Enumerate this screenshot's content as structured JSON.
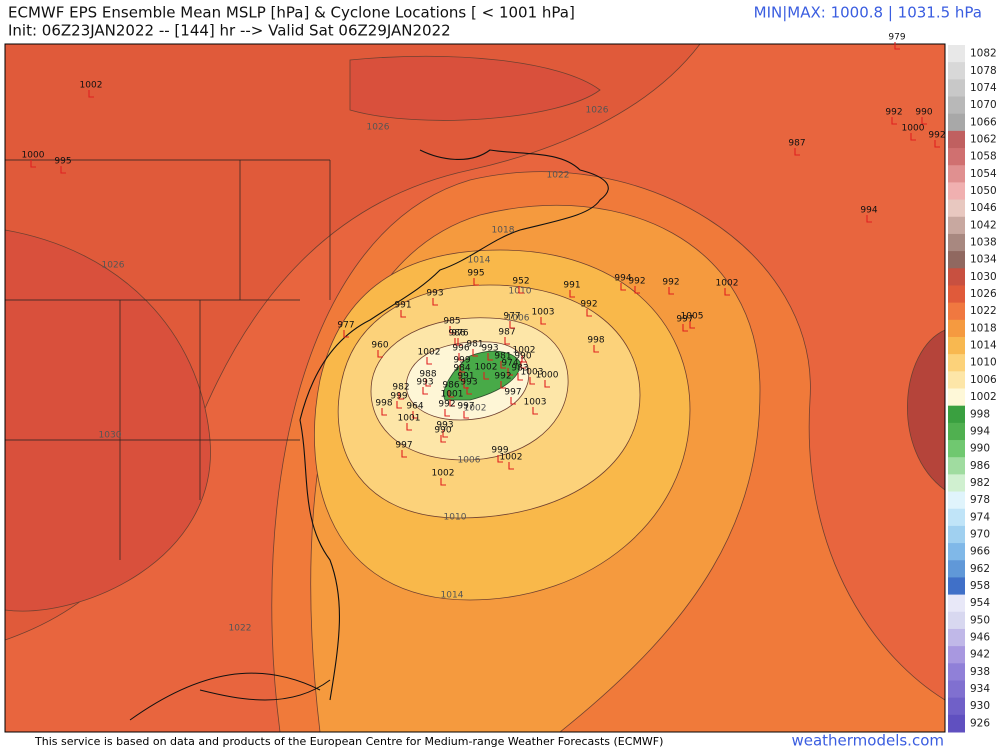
{
  "header": {
    "title": "ECMWF EPS Ensemble Mean MSLP [hPa] & Cyclone Locations [ < 1001 hPa]",
    "init": "Init: 06Z23JAN2022 -- [144] hr --> Valid Sat 06Z29JAN2022",
    "minmax": "MIN|MAX: 1000.8 | 1031.5 hPa"
  },
  "colorbar": {
    "labels": [
      1082,
      1078,
      1074,
      1070,
      1066,
      1062,
      1058,
      1054,
      1050,
      1046,
      1042,
      1038,
      1034,
      1030,
      1026,
      1022,
      1018,
      1014,
      1010,
      1006,
      1002,
      998,
      994,
      990,
      986,
      982,
      978,
      974,
      970,
      966,
      962,
      958,
      954,
      950,
      946,
      942,
      938,
      934,
      930,
      926
    ]
  },
  "contours": {
    "labels": [
      "1026",
      "1026",
      "1022",
      "1018",
      "1014",
      "1010",
      "1006",
      "1002",
      "1006",
      "1010",
      "1014",
      "1026",
      "1030",
      "1022"
    ]
  },
  "cyclones": {
    "labels": [
      "979",
      "1002",
      "1000",
      "995",
      "992",
      "990",
      "1000",
      "992",
      "987",
      "994",
      "995",
      "952",
      "991",
      "994",
      "992",
      "992",
      "1002",
      "993",
      "991",
      "992",
      "1003",
      "1005",
      "997",
      "977",
      "985",
      "976",
      "986",
      "987",
      "977",
      "998",
      "960",
      "996",
      "981",
      "993",
      "1002",
      "1002",
      "990",
      "981",
      "999",
      "974",
      "1002",
      "984",
      "983",
      "988",
      "991",
      "993",
      "992",
      "1003",
      "1000",
      "982",
      "986",
      "993",
      "1001",
      "999",
      "998",
      "997",
      "964",
      "992",
      "997",
      "1003",
      "1001",
      "993",
      "990",
      "997",
      "999",
      "1002",
      "1002"
    ]
  },
  "footer": {
    "source": "This service is based on data and products of the European Centre for Medium-range Weather Forecasts (ECMWF)",
    "brand": "weathermodels.com"
  }
}
